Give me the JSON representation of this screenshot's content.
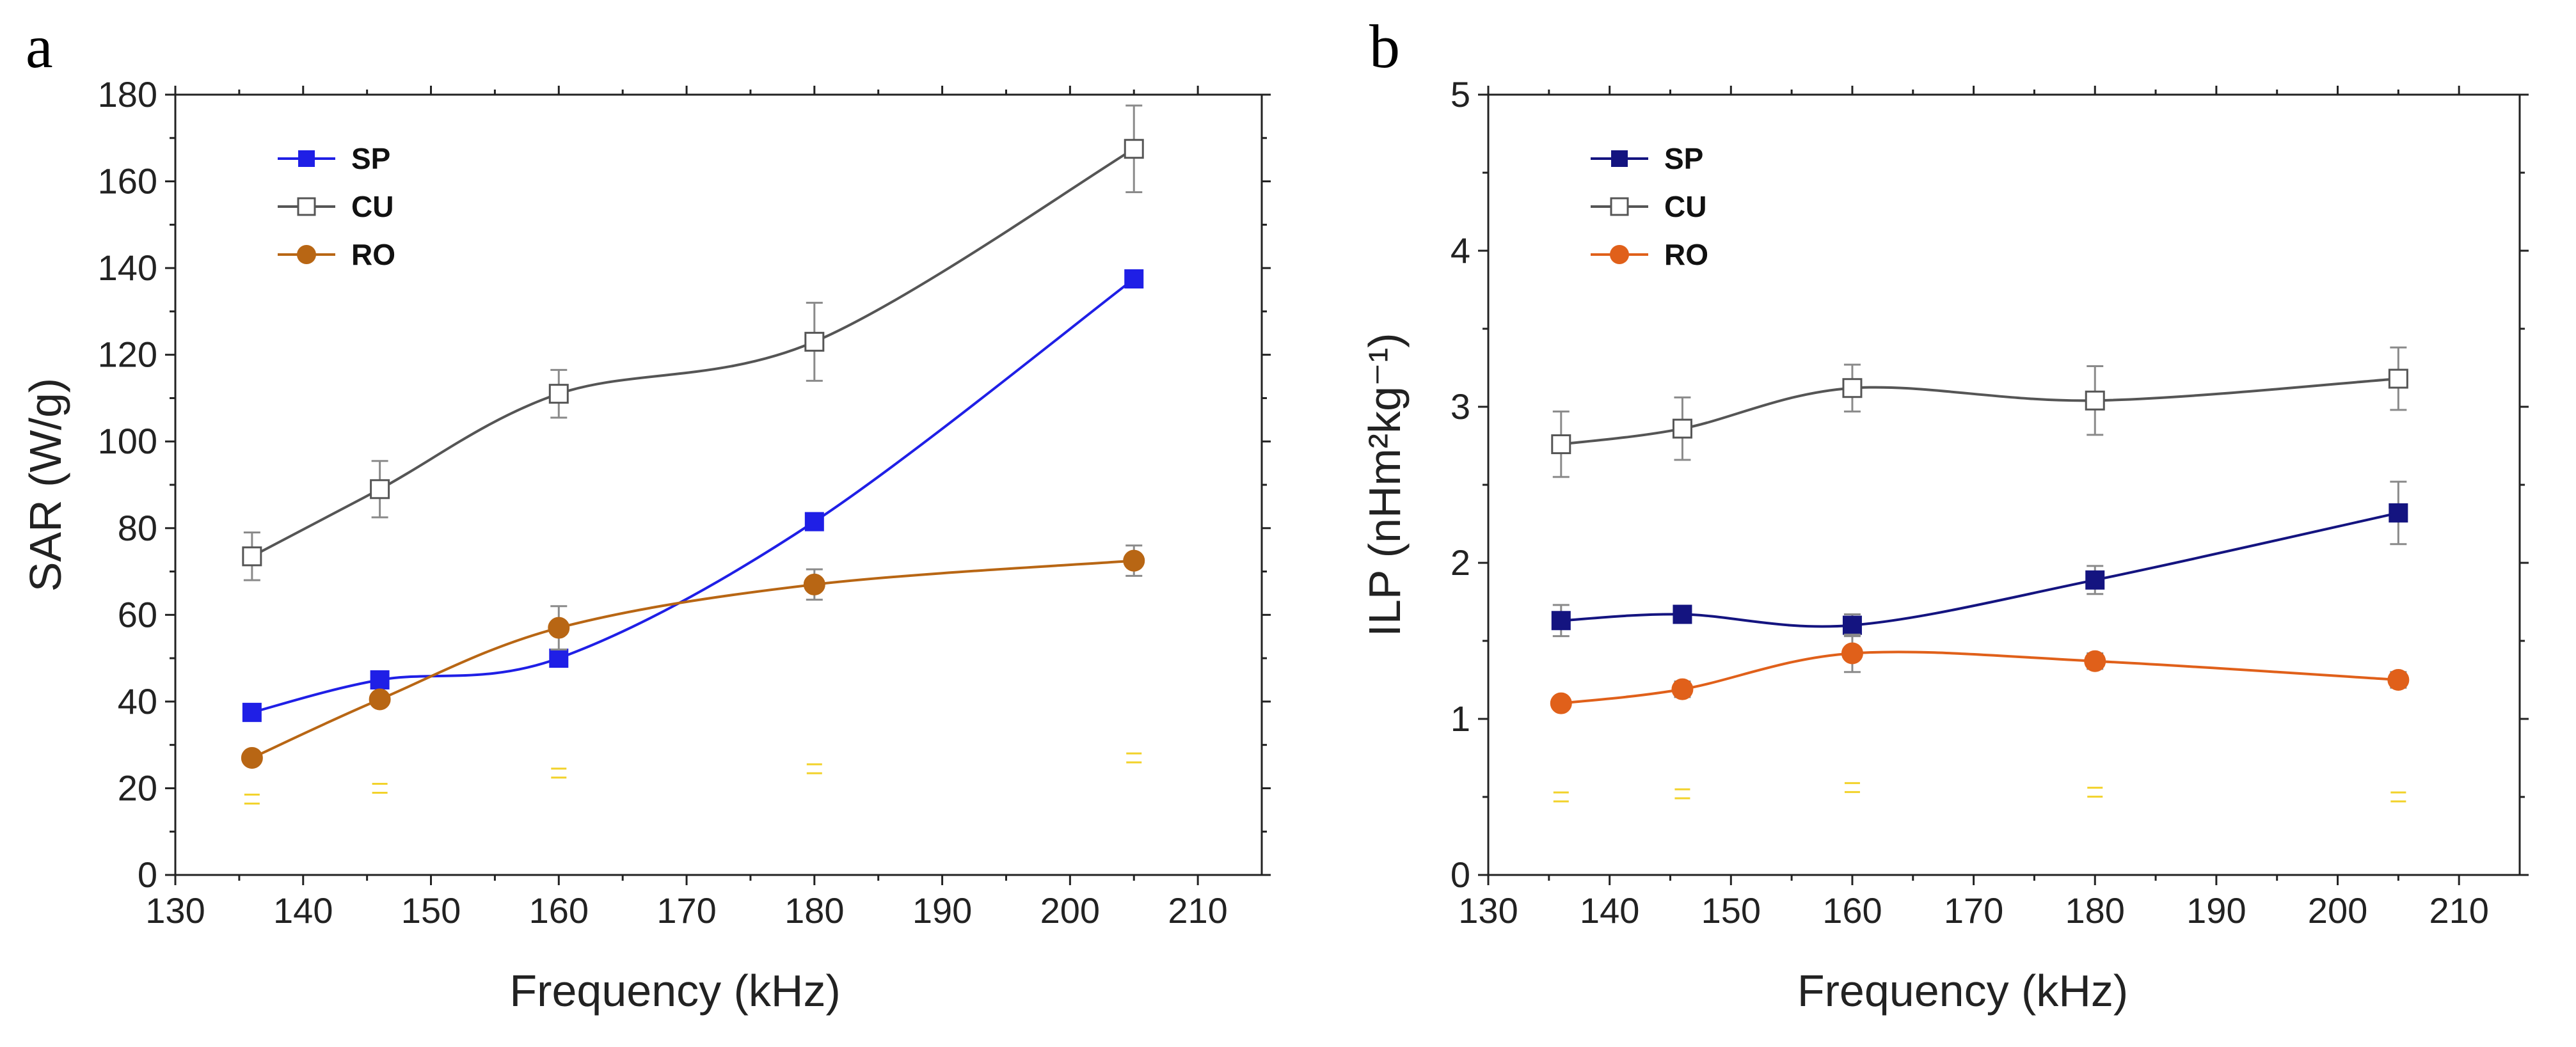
{
  "chart_data": [
    {
      "panel": "a",
      "type": "line",
      "xlabel": "Frequency (kHz)",
      "ylabel": "SAR (W/g)",
      "xlim": [
        130,
        215
      ],
      "ylim": [
        0,
        180
      ],
      "xticks": [
        130,
        140,
        150,
        160,
        170,
        180,
        190,
        200,
        210
      ],
      "yticks": [
        0,
        20,
        40,
        60,
        80,
        100,
        120,
        140,
        160,
        180
      ],
      "legend_position": "top-left",
      "x": [
        136,
        146,
        160,
        180,
        205
      ],
      "series": [
        {
          "name": "SP",
          "marker": "filled-square",
          "color": "#1f1fe6",
          "values": [
            37.5,
            45,
            50,
            81.5,
            137.5
          ],
          "errors": [
            0,
            0,
            0,
            0,
            0
          ]
        },
        {
          "name": "CU",
          "marker": "open-square",
          "color": "#555555",
          "values": [
            73.5,
            89,
            111,
            123,
            167.5
          ],
          "errors": [
            5.5,
            6.5,
            5.5,
            9,
            10
          ]
        },
        {
          "name": "RO",
          "marker": "filled-circle",
          "color": "#b86614",
          "values": [
            27,
            40.5,
            57,
            67,
            72.5
          ],
          "errors": [
            0,
            0,
            5,
            3.5,
            3.5
          ]
        }
      ],
      "faint_markers": {
        "color": "#f2d22a",
        "values": [
          17.5,
          20,
          23.5,
          24.5,
          27
        ]
      }
    },
    {
      "panel": "b",
      "type": "line",
      "xlabel": "Frequency (kHz)",
      "ylabel": "ILP (nHm²kg⁻¹)",
      "xlim": [
        130,
        215
      ],
      "ylim": [
        0,
        5
      ],
      "xticks": [
        130,
        140,
        150,
        160,
        170,
        180,
        190,
        200,
        210
      ],
      "yticks": [
        0,
        1,
        2,
        3,
        4,
        5
      ],
      "legend_position": "top-left",
      "x": [
        136,
        146,
        160,
        180,
        205
      ],
      "series": [
        {
          "name": "SP",
          "marker": "filled-square",
          "color": "#141480",
          "values": [
            1.63,
            1.67,
            1.6,
            1.89,
            2.32
          ],
          "errors": [
            0.1,
            0.04,
            0.07,
            0.09,
            0.2
          ]
        },
        {
          "name": "CU",
          "marker": "open-square",
          "color": "#555555",
          "values": [
            2.76,
            2.86,
            3.12,
            3.04,
            3.18
          ],
          "errors": [
            0.21,
            0.2,
            0.15,
            0.22,
            0.2
          ]
        },
        {
          "name": "RO",
          "marker": "filled-circle",
          "color": "#e0601a",
          "values": [
            1.1,
            1.19,
            1.42,
            1.37,
            1.25
          ],
          "errors": [
            0.03,
            0.05,
            0.12,
            0.05,
            0.05
          ]
        }
      ],
      "faint_markers": {
        "color": "#f2d22a",
        "values": [
          0.5,
          0.52,
          0.56,
          0.53,
          0.5
        ]
      }
    }
  ]
}
